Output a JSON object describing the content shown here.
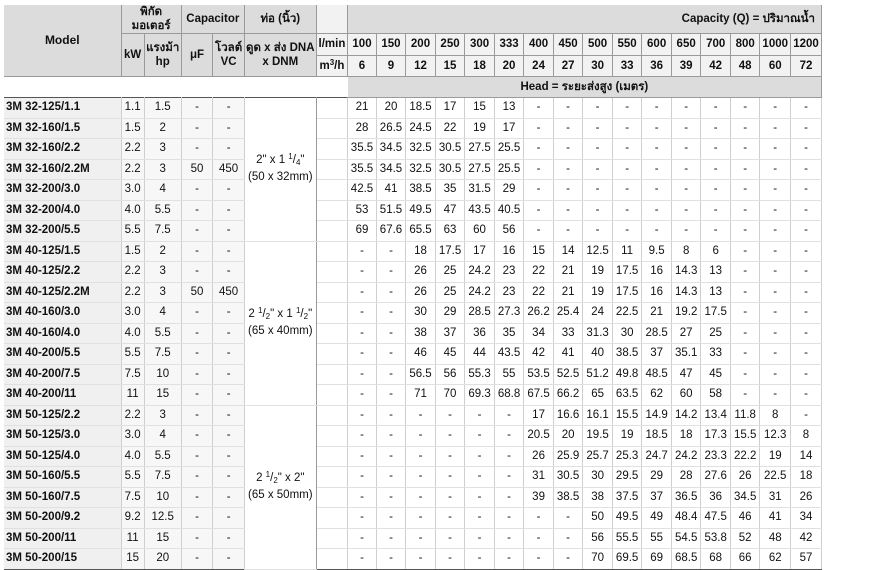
{
  "header": {
    "model": "Model",
    "motor": "พิกัดมอเตอร์",
    "capacitor": "Capacitor",
    "pipe": "ท่อ (นิ้ว)",
    "kw": "kW",
    "hp": "แรงม้า hp",
    "uf": "μF",
    "vc": "โวลต์ VC",
    "pipe_sub": "ดูด x ส่ง DNA x DNM",
    "lmin": "l/min",
    "m3h": "m3/h",
    "capacity": "Capacity (Q) = ปริมาณน้ำ",
    "head": "Head = ระยะส่งสูง (เมตร)",
    "flow_lmin": [
      "100",
      "150",
      "200",
      "250",
      "300",
      "333",
      "400",
      "450",
      "500",
      "550",
      "600",
      "650",
      "700",
      "800",
      "1000",
      "1200"
    ],
    "flow_m3h": [
      "6",
      "9",
      "12",
      "15",
      "18",
      "20",
      "24",
      "27",
      "30",
      "33",
      "36",
      "39",
      "42",
      "48",
      "60",
      "72"
    ]
  },
  "groups": [
    {
      "pipe_line1": "2\" x 1 1/4\"",
      "pipe_line2": "(50 x 32mm)",
      "rows": [
        {
          "model": "3M 32-125/1.1",
          "kw": "1.1",
          "hp": "1.5",
          "uf": "-",
          "vc": "-",
          "heads": [
            "21",
            "20",
            "18.5",
            "17",
            "15",
            "13",
            "-",
            "-",
            "-",
            "-",
            "-",
            "-",
            "-",
            "-",
            "-",
            "-"
          ]
        },
        {
          "model": "3M 32-160/1.5",
          "kw": "1.5",
          "hp": "2",
          "uf": "-",
          "vc": "-",
          "heads": [
            "28",
            "26.5",
            "24.5",
            "22",
            "19",
            "17",
            "-",
            "-",
            "-",
            "-",
            "-",
            "-",
            "-",
            "-",
            "-",
            "-"
          ]
        },
        {
          "model": "3M 32-160/2.2",
          "kw": "2.2",
          "hp": "3",
          "uf": "-",
          "vc": "-",
          "heads": [
            "35.5",
            "34.5",
            "32.5",
            "30.5",
            "27.5",
            "25.5",
            "-",
            "-",
            "-",
            "-",
            "-",
            "-",
            "-",
            "-",
            "-",
            "-"
          ]
        },
        {
          "model": "3M 32-160/2.2M",
          "kw": "2.2",
          "hp": "3",
          "uf": "50",
          "vc": "450",
          "heads": [
            "35.5",
            "34.5",
            "32.5",
            "30.5",
            "27.5",
            "25.5",
            "-",
            "-",
            "-",
            "-",
            "-",
            "-",
            "-",
            "-",
            "-",
            "-"
          ]
        },
        {
          "model": "3M 32-200/3.0",
          "kw": "3.0",
          "hp": "4",
          "uf": "-",
          "vc": "-",
          "heads": [
            "42.5",
            "41",
            "38.5",
            "35",
            "31.5",
            "29",
            "-",
            "-",
            "-",
            "-",
            "-",
            "-",
            "-",
            "-",
            "-",
            "-"
          ]
        },
        {
          "model": "3M 32-200/4.0",
          "kw": "4.0",
          "hp": "5.5",
          "uf": "-",
          "vc": "-",
          "heads": [
            "53",
            "51.5",
            "49.5",
            "47",
            "43.5",
            "40.5",
            "-",
            "-",
            "-",
            "-",
            "-",
            "-",
            "-",
            "-",
            "-",
            "-"
          ]
        },
        {
          "model": "3M 32-200/5.5",
          "kw": "5.5",
          "hp": "7.5",
          "uf": "-",
          "vc": "-",
          "heads": [
            "69",
            "67.6",
            "65.5",
            "63",
            "60",
            "56",
            "-",
            "-",
            "-",
            "-",
            "-",
            "-",
            "-",
            "-",
            "-",
            "-"
          ]
        }
      ]
    },
    {
      "pipe_line1": "2 1/2\" x 1 1/2\"",
      "pipe_line2": "(65 x 40mm)",
      "rows": [
        {
          "model": "3M 40-125/1.5",
          "kw": "1.5",
          "hp": "2",
          "uf": "-",
          "vc": "-",
          "heads": [
            "-",
            "-",
            "18",
            "17.5",
            "17",
            "16",
            "15",
            "14",
            "12.5",
            "11",
            "9.5",
            "8",
            "6",
            "-",
            "-",
            "-"
          ]
        },
        {
          "model": "3M 40-125/2.2",
          "kw": "2.2",
          "hp": "3",
          "uf": "-",
          "vc": "-",
          "heads": [
            "-",
            "-",
            "26",
            "25",
            "24.2",
            "23",
            "22",
            "21",
            "19",
            "17.5",
            "16",
            "14.3",
            "13",
            "-",
            "-",
            "-"
          ]
        },
        {
          "model": "3M 40-125/2.2M",
          "kw": "2.2",
          "hp": "3",
          "uf": "50",
          "vc": "450",
          "heads": [
            "-",
            "-",
            "26",
            "25",
            "24.2",
            "23",
            "22",
            "21",
            "19",
            "17.5",
            "16",
            "14.3",
            "13",
            "-",
            "-",
            "-"
          ]
        },
        {
          "model": "3M 40-160/3.0",
          "kw": "3.0",
          "hp": "4",
          "uf": "-",
          "vc": "-",
          "heads": [
            "-",
            "-",
            "30",
            "29",
            "28.5",
            "27.3",
            "26.2",
            "25.4",
            "24",
            "22.5",
            "21",
            "19.2",
            "17.5",
            "-",
            "-",
            "-"
          ]
        },
        {
          "model": "3M 40-160/4.0",
          "kw": "4.0",
          "hp": "5.5",
          "uf": "-",
          "vc": "-",
          "heads": [
            "-",
            "-",
            "38",
            "37",
            "36",
            "35",
            "34",
            "33",
            "31.3",
            "30",
            "28.5",
            "27",
            "25",
            "-",
            "-",
            "-"
          ]
        },
        {
          "model": "3M 40-200/5.5",
          "kw": "5.5",
          "hp": "7.5",
          "uf": "-",
          "vc": "-",
          "heads": [
            "-",
            "-",
            "46",
            "45",
            "44",
            "43.5",
            "42",
            "41",
            "40",
            "38.5",
            "37",
            "35.1",
            "33",
            "-",
            "-",
            "-"
          ]
        },
        {
          "model": "3M 40-200/7.5",
          "kw": "7.5",
          "hp": "10",
          "uf": "-",
          "vc": "-",
          "heads": [
            "-",
            "-",
            "56.5",
            "56",
            "55.3",
            "55",
            "53.5",
            "52.5",
            "51.2",
            "49.8",
            "48.5",
            "47",
            "45",
            "-",
            "-",
            "-"
          ]
        },
        {
          "model": "3M 40-200/11",
          "kw": "11",
          "hp": "15",
          "uf": "-",
          "vc": "-",
          "heads": [
            "-",
            "-",
            "71",
            "70",
            "69.3",
            "68.8",
            "67.5",
            "66.2",
            "65",
            "63.5",
            "62",
            "60",
            "58",
            "-",
            "-",
            "-"
          ]
        }
      ]
    },
    {
      "pipe_line1": "2 1/2\" x 2\"",
      "pipe_line2": "(65 x 50mm)",
      "rows": [
        {
          "model": "3M 50-125/2.2",
          "kw": "2.2",
          "hp": "3",
          "uf": "-",
          "vc": "-",
          "heads": [
            "-",
            "-",
            "-",
            "-",
            "-",
            "-",
            "17",
            "16.6",
            "16.1",
            "15.5",
            "14.9",
            "14.2",
            "13.4",
            "11.8",
            "8",
            "-"
          ]
        },
        {
          "model": "3M 50-125/3.0",
          "kw": "3.0",
          "hp": "4",
          "uf": "-",
          "vc": "-",
          "heads": [
            "-",
            "-",
            "-",
            "-",
            "-",
            "-",
            "20.5",
            "20",
            "19.5",
            "19",
            "18.5",
            "18",
            "17.3",
            "15.5",
            "12.3",
            "8"
          ]
        },
        {
          "model": "3M 50-125/4.0",
          "kw": "4.0",
          "hp": "5.5",
          "uf": "-",
          "vc": "-",
          "heads": [
            "-",
            "-",
            "-",
            "-",
            "-",
            "-",
            "26",
            "25.9",
            "25.7",
            "25.3",
            "24.7",
            "24.2",
            "23.3",
            "22.2",
            "19",
            "14"
          ]
        },
        {
          "model": "3M 50-160/5.5",
          "kw": "5.5",
          "hp": "7.5",
          "uf": "-",
          "vc": "-",
          "heads": [
            "-",
            "-",
            "-",
            "-",
            "-",
            "-",
            "31",
            "30.5",
            "30",
            "29.5",
            "29",
            "28",
            "27.6",
            "26",
            "22.5",
            "18"
          ]
        },
        {
          "model": "3M 50-160/7.5",
          "kw": "7.5",
          "hp": "10",
          "uf": "-",
          "vc": "-",
          "heads": [
            "-",
            "-",
            "-",
            "-",
            "-",
            "-",
            "39",
            "38.5",
            "38",
            "37.5",
            "37",
            "36.5",
            "36",
            "34.5",
            "31",
            "26"
          ]
        },
        {
          "model": "3M 50-200/9.2",
          "kw": "9.2",
          "hp": "12.5",
          "uf": "-",
          "vc": "-",
          "heads": [
            "-",
            "-",
            "-",
            "-",
            "-",
            "-",
            "-",
            "-",
            "50",
            "49.5",
            "49",
            "48.4",
            "47.5",
            "46",
            "41",
            "34"
          ]
        },
        {
          "model": "3M 50-200/11",
          "kw": "11",
          "hp": "15",
          "uf": "-",
          "vc": "-",
          "heads": [
            "-",
            "-",
            "-",
            "-",
            "-",
            "-",
            "-",
            "-",
            "56",
            "55.5",
            "55",
            "54.5",
            "53.8",
            "52",
            "48",
            "42"
          ]
        },
        {
          "model": "3M 50-200/15",
          "kw": "15",
          "hp": "20",
          "uf": "-",
          "vc": "-",
          "heads": [
            "-",
            "-",
            "-",
            "-",
            "-",
            "-",
            "-",
            "-",
            "70",
            "69.5",
            "69",
            "68.5",
            "68",
            "66",
            "62",
            "57"
          ]
        }
      ]
    }
  ]
}
